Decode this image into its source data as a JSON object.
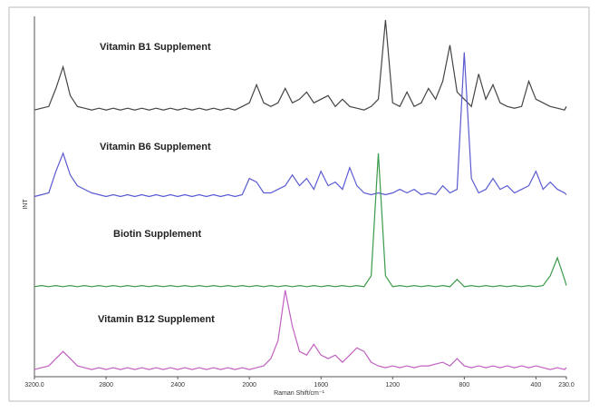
{
  "chart_data": {
    "type": "line",
    "y_label": "INT",
    "x_label": "Raman Shift/cm⁻¹",
    "xlim": [
      3200,
      230
    ],
    "ylim": [
      0,
      100
    ],
    "xticks": [
      {
        "value": 3200,
        "label": "3200.0"
      },
      2800,
      2400,
      2000,
      1600,
      1200,
      800,
      400,
      {
        "value": 230,
        "label": "230.0"
      }
    ],
    "x": [
      3200,
      3160,
      3120,
      3080,
      3040,
      3000,
      2960,
      2920,
      2880,
      2840,
      2800,
      2760,
      2720,
      2680,
      2640,
      2600,
      2560,
      2520,
      2480,
      2440,
      2400,
      2360,
      2320,
      2280,
      2240,
      2200,
      2160,
      2120,
      2080,
      2040,
      2000,
      1960,
      1920,
      1880,
      1840,
      1800,
      1760,
      1720,
      1680,
      1640,
      1600,
      1560,
      1520,
      1480,
      1440,
      1400,
      1360,
      1320,
      1280,
      1240,
      1200,
      1160,
      1120,
      1080,
      1040,
      1000,
      960,
      920,
      880,
      840,
      800,
      760,
      720,
      680,
      640,
      600,
      560,
      520,
      480,
      440,
      400,
      360,
      320,
      280,
      240,
      230
    ],
    "series": [
      {
        "name": "Vitamin B1 Supplement",
        "color": "#444444",
        "values": [
          74,
          74.5,
          75,
          80,
          86,
          78,
          75,
          74.5,
          74,
          74.5,
          74,
          74.5,
          74,
          74.5,
          74,
          74.5,
          74,
          74.5,
          74,
          74.5,
          74,
          74.5,
          74,
          74.5,
          74,
          74.5,
          74,
          74.5,
          74,
          75,
          76,
          81,
          76,
          75,
          76,
          80,
          76,
          77,
          79,
          76,
          77,
          78,
          75,
          77,
          75,
          74.5,
          74,
          75,
          77,
          99,
          76,
          75,
          79,
          75,
          76,
          80,
          77,
          82,
          92,
          79,
          77,
          75,
          84,
          77,
          81,
          76,
          75,
          74.5,
          75,
          82,
          77,
          76,
          75,
          74.5,
          74,
          75
        ]
      },
      {
        "name": "Vitamin B6 Supplement",
        "color": "#5a5ad2",
        "values": [
          50,
          50.5,
          51,
          57,
          62,
          56,
          53,
          52,
          51,
          50.5,
          50,
          50.5,
          50,
          50.5,
          50,
          50.5,
          50,
          50.5,
          50,
          50.5,
          50,
          50.5,
          50,
          50.5,
          50,
          50.5,
          50,
          50.5,
          50,
          50.5,
          55,
          54,
          51,
          51,
          52,
          53,
          56,
          53,
          55,
          52,
          57,
          53,
          54,
          52,
          58,
          53,
          51,
          50.5,
          51,
          50.5,
          51,
          52,
          51,
          52,
          50.5,
          51,
          50.5,
          53,
          51,
          52,
          90,
          55,
          51,
          52,
          55,
          52,
          53,
          51,
          52,
          53,
          57,
          52,
          54,
          52,
          51,
          50.5
        ]
      },
      {
        "name": "Biotin Supplement",
        "color": "#3a9a4a",
        "values": [
          25,
          25.3,
          25,
          25.3,
          25,
          25.3,
          25,
          25.3,
          25,
          25.3,
          25,
          25.3,
          25,
          25.3,
          25,
          25.3,
          25,
          25.3,
          25,
          25.3,
          25,
          25.3,
          25,
          25.3,
          25,
          25.3,
          25,
          25.3,
          25,
          25.3,
          25,
          25.3,
          25,
          25.3,
          25,
          25.3,
          25,
          25.3,
          25,
          25.3,
          25,
          25.3,
          25,
          25.3,
          25,
          25.3,
          25,
          28,
          62,
          28,
          25,
          25.3,
          25,
          25.3,
          25,
          25.3,
          25,
          25.3,
          25,
          27,
          25,
          25.3,
          25,
          25.3,
          25,
          25.3,
          25,
          25.3,
          25,
          25.3,
          25,
          25.3,
          28,
          33,
          27,
          25.3
        ]
      },
      {
        "name": "Vitamin B12 Supplement",
        "color": "#c060c0",
        "values": [
          2,
          2.5,
          3,
          5,
          7,
          5,
          3,
          2.5,
          2,
          2.5,
          2,
          2.5,
          2,
          2.5,
          2,
          2.5,
          2,
          2.5,
          2,
          2.5,
          2,
          2.5,
          2,
          2.5,
          2,
          2.5,
          2,
          2.5,
          2,
          2.5,
          2,
          2.5,
          3,
          5,
          10,
          24,
          14,
          7,
          6,
          9,
          6,
          5,
          6,
          4,
          6,
          8,
          7,
          4,
          3,
          2.5,
          3,
          2.5,
          3,
          2.5,
          3,
          3,
          3.5,
          4,
          3,
          5,
          3,
          2.5,
          3,
          2.5,
          3,
          2.5,
          3,
          2.5,
          3,
          2.5,
          3,
          2.5,
          2,
          2.5,
          2,
          2.5
        ]
      }
    ]
  }
}
